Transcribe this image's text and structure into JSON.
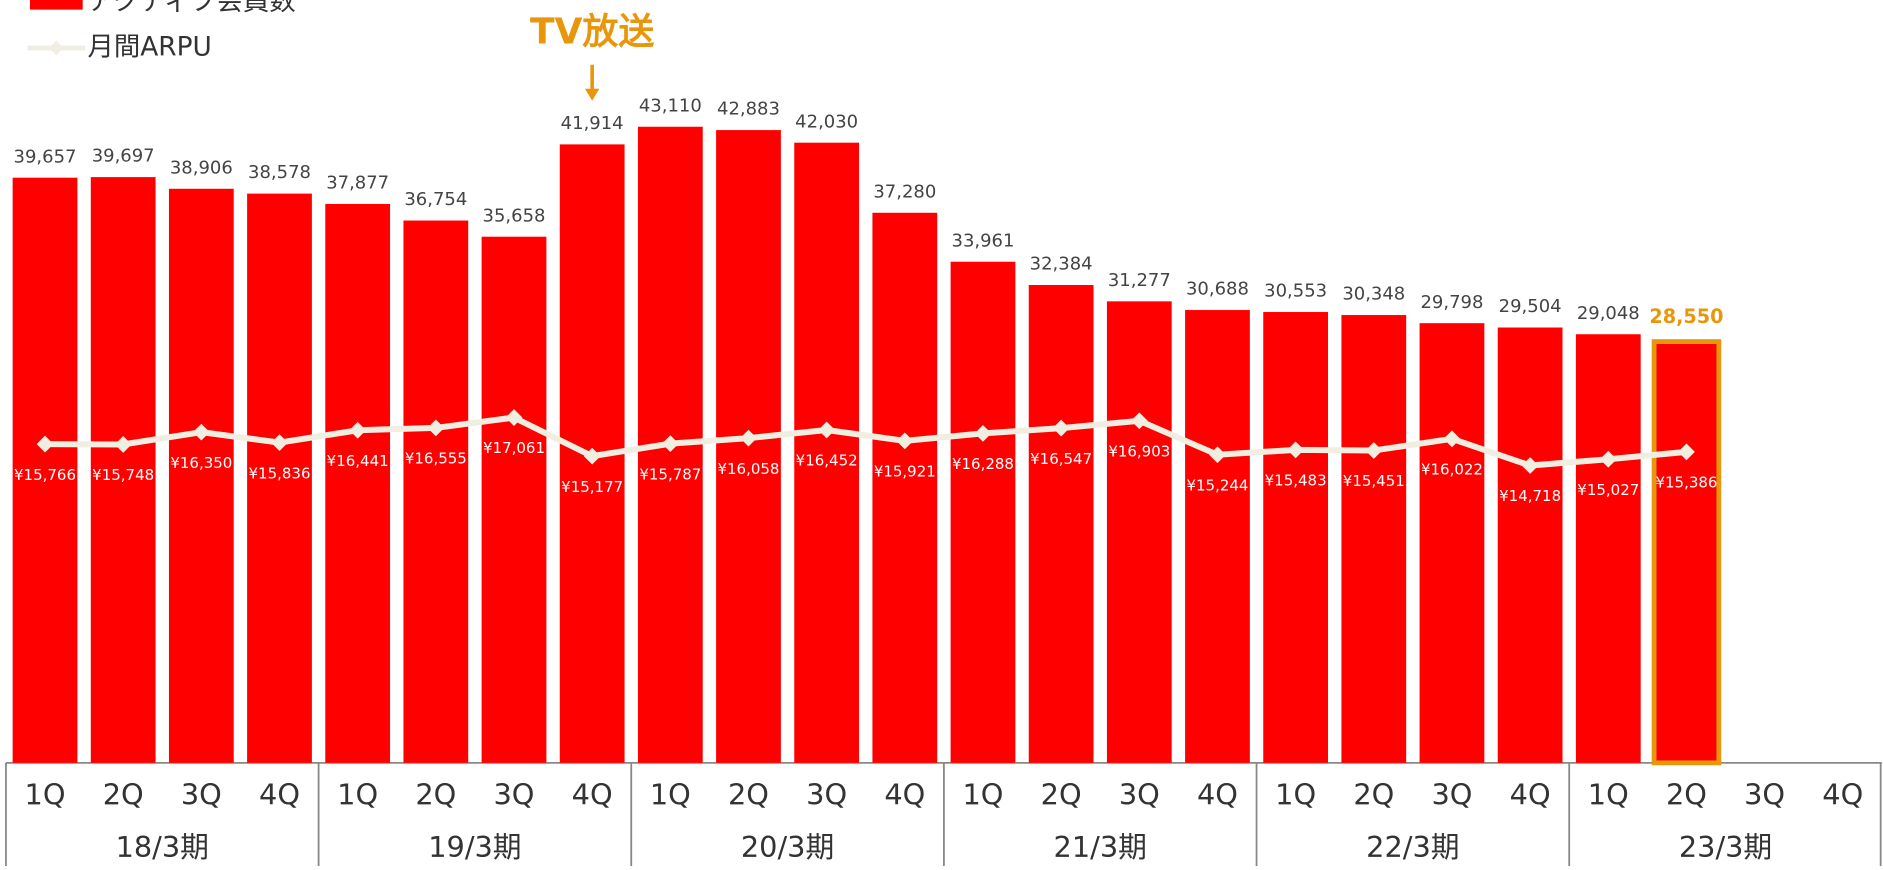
{
  "chart_data": {
    "type": "bar",
    "categories": [
      "1Q",
      "2Q",
      "3Q",
      "4Q",
      "1Q",
      "2Q",
      "3Q",
      "4Q",
      "1Q",
      "2Q",
      "3Q",
      "4Q",
      "1Q",
      "2Q",
      "3Q",
      "4Q",
      "1Q",
      "2Q",
      "3Q",
      "4Q",
      "1Q",
      "2Q",
      "3Q",
      "4Q"
    ],
    "groups": [
      "18/3期",
      "19/3期",
      "20/3期",
      "21/3期",
      "22/3期",
      "23/3期"
    ],
    "series": [
      {
        "name": "アクティブ会員数",
        "type": "bar",
        "color": "#ff0000",
        "values": [
          39657,
          39697,
          38906,
          38578,
          37877,
          36754,
          35658,
          41914,
          43110,
          42883,
          42030,
          37280,
          33961,
          32384,
          31277,
          30688,
          30553,
          30348,
          29798,
          29504,
          29048,
          28550,
          null,
          null
        ],
        "value_labels": [
          "39,657",
          "39,697",
          "38,906",
          "38,578",
          "37,877",
          "36,754",
          "35,658",
          "41,914",
          "43,110",
          "42,883",
          "42,030",
          "37,280",
          "33,961",
          "32,384",
          "31,277",
          "30,688",
          "30,553",
          "30,348",
          "29,798",
          "29,504",
          "29,048",
          "28,550",
          null,
          null
        ]
      },
      {
        "name": "月間ARPU",
        "type": "line",
        "axis": "y2",
        "color": "#f0eee0",
        "values": [
          15766,
          15748,
          16350,
          15836,
          16441,
          16555,
          17061,
          15177,
          15787,
          16058,
          16452,
          15921,
          16288,
          16547,
          16903,
          15244,
          15483,
          15451,
          16022,
          14718,
          15027,
          15386,
          null,
          null
        ],
        "value_labels": [
          "¥15,766",
          "¥15,748",
          "¥16,350",
          "¥15,836",
          "¥16,441",
          "¥16,555",
          "¥17,061",
          "¥15,177",
          "¥15,787",
          "¥16,058",
          "¥16,452",
          "¥15,921",
          "¥16,288",
          "¥16,547",
          "¥16,903",
          "¥15,244",
          "¥15,483",
          "¥15,451",
          "¥16,022",
          "¥14,718",
          "¥15,027",
          "¥15,386",
          null,
          null
        ]
      }
    ],
    "ylim": [
      0,
      51700
    ],
    "y2lim": [
      200,
      37450
    ],
    "annotation": {
      "text": "TV放送",
      "index": 7,
      "color": "#e8960c"
    },
    "highlight": {
      "index": 21,
      "color": "#e8960c"
    }
  }
}
